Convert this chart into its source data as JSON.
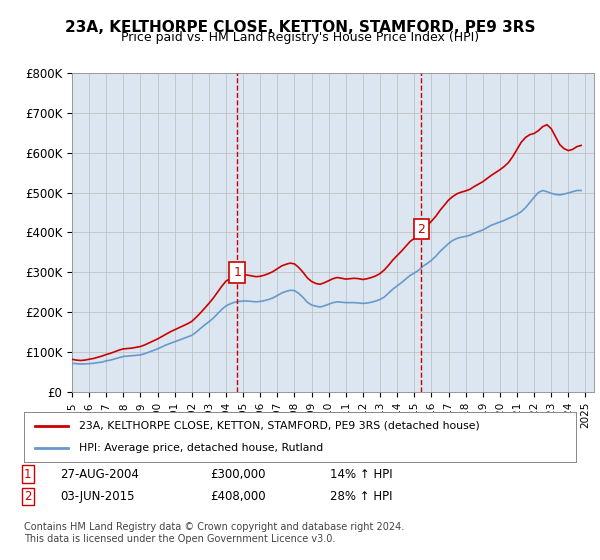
{
  "title": "23A, KELTHORPE CLOSE, KETTON, STAMFORD, PE9 3RS",
  "subtitle": "Price paid vs. HM Land Registry's House Price Index (HPI)",
  "ylabel": "",
  "xlim_start": 1995.0,
  "xlim_end": 2025.5,
  "ylim_min": 0,
  "ylim_max": 800000,
  "yticks": [
    0,
    100000,
    200000,
    300000,
    400000,
    500000,
    600000,
    700000,
    800000
  ],
  "ytick_labels": [
    "£0",
    "£100K",
    "£200K",
    "£300K",
    "£400K",
    "£500K",
    "£600K",
    "£700K",
    "£800K"
  ],
  "xticks": [
    1995,
    1996,
    1997,
    1998,
    1999,
    2000,
    2001,
    2002,
    2003,
    2004,
    2005,
    2006,
    2007,
    2008,
    2009,
    2010,
    2011,
    2012,
    2013,
    2014,
    2015,
    2016,
    2017,
    2018,
    2019,
    2020,
    2021,
    2022,
    2023,
    2024,
    2025
  ],
  "background_color": "#dce6f1",
  "plot_bg_color": "#dce6f1",
  "fig_bg_color": "#ffffff",
  "red_line_color": "#cc0000",
  "blue_line_color": "#6699cc",
  "vline_color": "#cc0000",
  "marker_box_color": "#cc0000",
  "sale1_x": 2004.65,
  "sale1_y": 300000,
  "sale1_label": "1",
  "sale2_x": 2015.42,
  "sale2_y": 408000,
  "sale2_label": "2",
  "legend_line1": "23A, KELTHORPE CLOSE, KETTON, STAMFORD, PE9 3RS (detached house)",
  "legend_line2": "HPI: Average price, detached house, Rutland",
  "annotation1": "1    27-AUG-2004         £300,000        14% ↑ HPI",
  "annotation2": "2    03-JUN-2015         £408,000        28% ↑ HPI",
  "footnote": "Contains HM Land Registry data © Crown copyright and database right 2024.\nThis data is licensed under the Open Government Licence v3.0.",
  "hpi_years": [
    1995.0,
    1995.25,
    1995.5,
    1995.75,
    1996.0,
    1996.25,
    1996.5,
    1996.75,
    1997.0,
    1997.25,
    1997.5,
    1997.75,
    1998.0,
    1998.25,
    1998.5,
    1998.75,
    1999.0,
    1999.25,
    1999.5,
    1999.75,
    2000.0,
    2000.25,
    2000.5,
    2000.75,
    2001.0,
    2001.25,
    2001.5,
    2001.75,
    2002.0,
    2002.25,
    2002.5,
    2002.75,
    2003.0,
    2003.25,
    2003.5,
    2003.75,
    2004.0,
    2004.25,
    2004.5,
    2004.75,
    2005.0,
    2005.25,
    2005.5,
    2005.75,
    2006.0,
    2006.25,
    2006.5,
    2006.75,
    2007.0,
    2007.25,
    2007.5,
    2007.75,
    2008.0,
    2008.25,
    2008.5,
    2008.75,
    2009.0,
    2009.25,
    2009.5,
    2009.75,
    2010.0,
    2010.25,
    2010.5,
    2010.75,
    2011.0,
    2011.25,
    2011.5,
    2011.75,
    2012.0,
    2012.25,
    2012.5,
    2012.75,
    2013.0,
    2013.25,
    2013.5,
    2013.75,
    2014.0,
    2014.25,
    2014.5,
    2014.75,
    2015.0,
    2015.25,
    2015.5,
    2015.75,
    2016.0,
    2016.25,
    2016.5,
    2016.75,
    2017.0,
    2017.25,
    2017.5,
    2017.75,
    2018.0,
    2018.25,
    2018.5,
    2018.75,
    2019.0,
    2019.25,
    2019.5,
    2019.75,
    2020.0,
    2020.25,
    2020.5,
    2020.75,
    2021.0,
    2021.25,
    2021.5,
    2021.75,
    2022.0,
    2022.25,
    2022.5,
    2022.75,
    2023.0,
    2023.25,
    2023.5,
    2023.75,
    2024.0,
    2024.25,
    2024.5,
    2024.75
  ],
  "hpi_values": [
    72000,
    71000,
    70000,
    70500,
    71000,
    72000,
    73500,
    75000,
    78000,
    80000,
    83000,
    86000,
    89000,
    90000,
    91000,
    92000,
    93000,
    96000,
    100000,
    104000,
    108000,
    113000,
    118000,
    122000,
    126000,
    130000,
    134000,
    138000,
    142000,
    150000,
    159000,
    168000,
    176000,
    185000,
    196000,
    207000,
    216000,
    221000,
    225000,
    227000,
    228000,
    228000,
    227000,
    226000,
    227000,
    229000,
    232000,
    236000,
    242000,
    248000,
    252000,
    255000,
    254000,
    247000,
    237000,
    225000,
    218000,
    215000,
    213000,
    216000,
    220000,
    224000,
    226000,
    225000,
    224000,
    224000,
    224000,
    223000,
    222000,
    223000,
    225000,
    228000,
    232000,
    238000,
    248000,
    258000,
    266000,
    274000,
    283000,
    292000,
    298000,
    305000,
    315000,
    322000,
    330000,
    340000,
    352000,
    362000,
    372000,
    380000,
    385000,
    388000,
    390000,
    393000,
    398000,
    402000,
    406000,
    412000,
    418000,
    422000,
    426000,
    430000,
    435000,
    440000,
    445000,
    452000,
    462000,
    475000,
    488000,
    500000,
    505000,
    502000,
    498000,
    495000,
    494000,
    496000,
    499000,
    502000,
    505000,
    505000
  ],
  "red_years": [
    1995.0,
    1995.25,
    1995.5,
    1995.75,
    1996.0,
    1996.25,
    1996.5,
    1996.75,
    1997.0,
    1997.25,
    1997.5,
    1997.75,
    1998.0,
    1998.25,
    1998.5,
    1998.75,
    1999.0,
    1999.25,
    1999.5,
    1999.75,
    2000.0,
    2000.25,
    2000.5,
    2000.75,
    2001.0,
    2001.25,
    2001.5,
    2001.75,
    2002.0,
    2002.25,
    2002.5,
    2002.75,
    2003.0,
    2003.25,
    2003.5,
    2003.75,
    2004.0,
    2004.25,
    2004.5,
    2004.75,
    2005.0,
    2005.25,
    2005.5,
    2005.75,
    2006.0,
    2006.25,
    2006.5,
    2006.75,
    2007.0,
    2007.25,
    2007.5,
    2007.75,
    2008.0,
    2008.25,
    2008.5,
    2008.75,
    2009.0,
    2009.25,
    2009.5,
    2009.75,
    2010.0,
    2010.25,
    2010.5,
    2010.75,
    2011.0,
    2011.25,
    2011.5,
    2011.75,
    2012.0,
    2012.25,
    2012.5,
    2012.75,
    2013.0,
    2013.25,
    2013.5,
    2013.75,
    2014.0,
    2014.25,
    2014.5,
    2014.75,
    2015.0,
    2015.25,
    2015.5,
    2015.75,
    2016.0,
    2016.25,
    2016.5,
    2016.75,
    2017.0,
    2017.25,
    2017.5,
    2017.75,
    2018.0,
    2018.25,
    2018.5,
    2018.75,
    2019.0,
    2019.25,
    2019.5,
    2019.75,
    2020.0,
    2020.25,
    2020.5,
    2020.75,
    2021.0,
    2021.25,
    2021.5,
    2021.75,
    2022.0,
    2022.25,
    2022.5,
    2022.75,
    2023.0,
    2023.25,
    2023.5,
    2023.75,
    2024.0,
    2024.25,
    2024.5,
    2024.75
  ],
  "red_values": [
    82000,
    80000,
    79000,
    80000,
    82000,
    84000,
    87000,
    90000,
    94000,
    97000,
    101000,
    105000,
    108000,
    109000,
    110000,
    112000,
    114000,
    118000,
    123000,
    128000,
    133000,
    139000,
    145000,
    151000,
    156000,
    161000,
    166000,
    171000,
    177000,
    187000,
    198000,
    210000,
    222000,
    235000,
    250000,
    265000,
    278000,
    284000,
    288000,
    292000,
    294000,
    293000,
    291000,
    289000,
    290000,
    293000,
    297000,
    302000,
    309000,
    316000,
    320000,
    323000,
    321000,
    312000,
    300000,
    286000,
    277000,
    272000,
    270000,
    274000,
    279000,
    284000,
    287000,
    285000,
    283000,
    284000,
    285000,
    284000,
    282000,
    284000,
    287000,
    291000,
    297000,
    306000,
    318000,
    331000,
    342000,
    353000,
    365000,
    377000,
    385000,
    394000,
    407000,
    417000,
    428000,
    440000,
    455000,
    468000,
    481000,
    490000,
    497000,
    501000,
    504000,
    508000,
    515000,
    521000,
    527000,
    535000,
    543000,
    550000,
    557000,
    565000,
    575000,
    590000,
    608000,
    626000,
    638000,
    645000,
    648000,
    655000,
    665000,
    670000,
    660000,
    640000,
    620000,
    610000,
    605000,
    608000,
    615000,
    618000
  ]
}
